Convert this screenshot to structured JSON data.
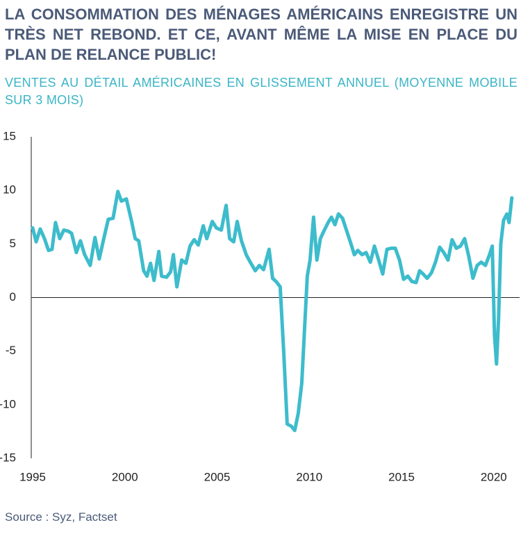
{
  "chart_data": {
    "type": "line",
    "title": "LA CONSOMMATION DES MÉNAGES AMÉRICAINS ENREGISTRE UN TRÈS NET REBOND. ET CE, AVANT MÊME LA MISE EN PLACE DU PLAN DE RELANCE PUBLIC!",
    "subtitle": "VENTES AU DÉTAIL AMÉRICAINES EN GLISSEMENT ANNUEL (MOYENNE MOBILE SUR 3 MOIS)",
    "source": "Source : Syz, Factset",
    "x": [
      1995.0,
      1995.19,
      1995.41,
      1995.64,
      1995.86,
      1996.05,
      1996.24,
      1996.47,
      1996.69,
      1996.92,
      1997.11,
      1997.37,
      1997.59,
      1997.82,
      1998.12,
      1998.38,
      1998.61,
      1998.87,
      1999.1,
      1999.36,
      1999.62,
      1999.81,
      2000.08,
      2000.38,
      2000.56,
      2000.75,
      2001.02,
      2001.2,
      2001.39,
      2001.58,
      2001.84,
      2001.99,
      2002.26,
      2002.48,
      2002.63,
      2002.82,
      2003.08,
      2003.31,
      2003.53,
      2003.76,
      2003.98,
      2004.25,
      2004.44,
      2004.74,
      2004.96,
      2005.23,
      2005.49,
      2005.68,
      2005.9,
      2006.09,
      2006.32,
      2006.58,
      2006.8,
      2007.07,
      2007.29,
      2007.52,
      2007.82,
      2008.01,
      2008.2,
      2008.42,
      2008.61,
      2008.8,
      2009.02,
      2009.21,
      2009.4,
      2009.59,
      2009.74,
      2009.89,
      2010.04,
      2010.23,
      2010.41,
      2010.6,
      2010.79,
      2011.02,
      2011.2,
      2011.39,
      2011.58,
      2011.8,
      2012.03,
      2012.26,
      2012.44,
      2012.63,
      2012.86,
      2013.08,
      2013.31,
      2013.53,
      2013.76,
      2013.98,
      2014.21,
      2014.44,
      2014.66,
      2014.89,
      2015.11,
      2015.34,
      2015.56,
      2015.79,
      2015.98,
      2016.17,
      2016.39,
      2016.62,
      2016.84,
      2017.07,
      2017.29,
      2017.52,
      2017.74,
      2017.97,
      2018.2,
      2018.42,
      2018.65,
      2018.87,
      2019.1,
      2019.32,
      2019.55,
      2019.77,
      2019.92,
      2020.04,
      2020.15,
      2020.26,
      2020.38,
      2020.53,
      2020.71,
      2020.83,
      2020.98
    ],
    "series": [
      {
        "name": "Ventes au détail",
        "color": "#3dbccc",
        "values": [
          6.5,
          5.2,
          6.4,
          5.5,
          4.4,
          4.5,
          7.0,
          5.5,
          6.3,
          6.2,
          6.0,
          4.2,
          5.3,
          4.0,
          3.0,
          5.6,
          3.6,
          5.6,
          7.3,
          7.4,
          9.9,
          9.0,
          9.2,
          7.0,
          5.5,
          5.3,
          2.5,
          2.0,
          3.2,
          1.6,
          4.3,
          2.0,
          1.9,
          2.4,
          4.0,
          1.0,
          3.5,
          3.2,
          4.8,
          5.4,
          4.9,
          6.7,
          5.5,
          7.1,
          6.5,
          6.3,
          8.6,
          5.5,
          5.2,
          7.1,
          5.3,
          4.0,
          3.3,
          2.5,
          3.0,
          2.6,
          4.5,
          1.8,
          1.5,
          1.0,
          -5.0,
          -11.8,
          -12.0,
          -12.4,
          -10.8,
          -8.0,
          -3.0,
          2.0,
          3.5,
          7.5,
          3.5,
          5.5,
          6.2,
          7.0,
          7.5,
          6.8,
          7.8,
          7.4,
          6.2,
          5.0,
          4.0,
          4.4,
          4.0,
          4.2,
          3.3,
          4.8,
          3.5,
          2.2,
          4.5,
          4.6,
          4.6,
          3.5,
          1.7,
          2.0,
          1.5,
          1.4,
          2.5,
          2.2,
          1.8,
          2.3,
          3.3,
          4.7,
          4.2,
          3.5,
          5.4,
          4.6,
          4.8,
          5.5,
          3.8,
          1.8,
          3.0,
          3.3,
          3.0,
          4.0,
          4.8,
          -3.5,
          -6.2,
          -2.0,
          5.0,
          7.2,
          7.8,
          7.0,
          9.3
        ]
      }
    ],
    "xlim": [
      1995,
      2021.4
    ],
    "xticks": [
      1995,
      2000,
      2005,
      2010,
      2015,
      2020
    ],
    "ylim": [
      -15,
      15
    ],
    "yticks": [
      15,
      10,
      5,
      0,
      -5,
      -10,
      -15
    ]
  }
}
